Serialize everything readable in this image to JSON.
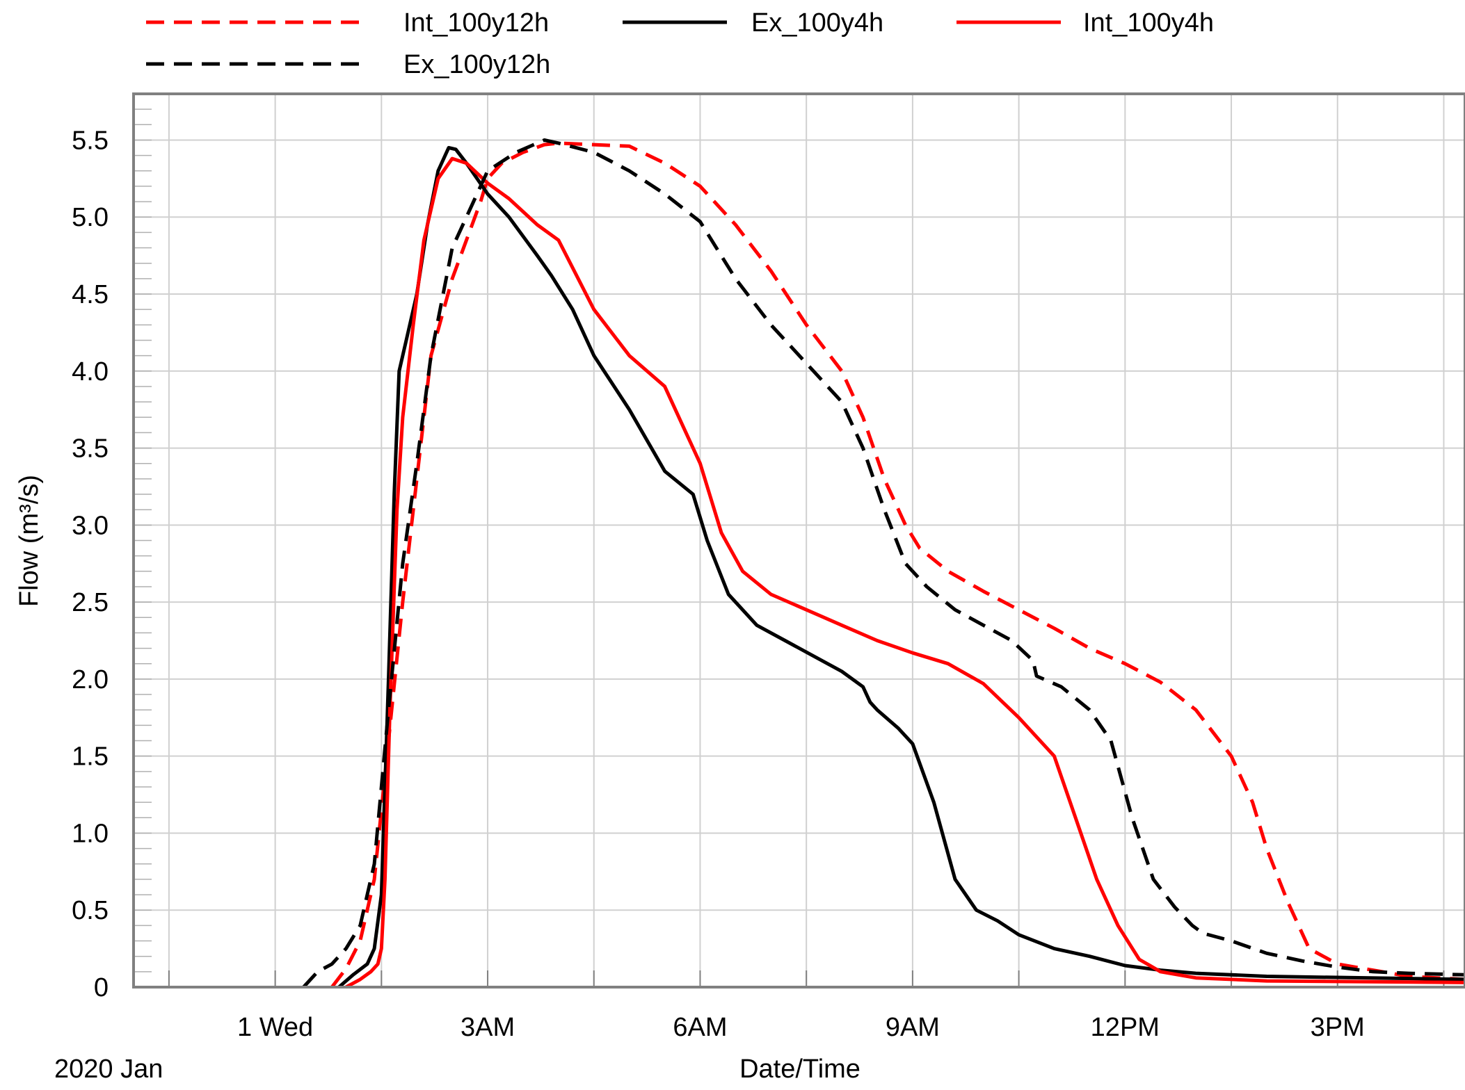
{
  "chart_data": {
    "type": "line",
    "title": "",
    "xlabel": "Date/Time",
    "ylabel": "Flow (m³/s)",
    "date_label": "2020 Jan",
    "x_unit": "hours after 2020-01-01 00:00",
    "xlim": [
      -2,
      16.8
    ],
    "ylim": [
      0,
      5.8
    ],
    "x_ticks": [
      {
        "x": 0,
        "label": "1 Wed"
      },
      {
        "x": 3,
        "label": "3AM"
      },
      {
        "x": 6,
        "label": "6AM"
      },
      {
        "x": 9,
        "label": "9AM"
      },
      {
        "x": 12,
        "label": "12PM"
      },
      {
        "x": 15,
        "label": "3PM"
      }
    ],
    "y_ticks": [
      {
        "y": 0,
        "label": "0"
      },
      {
        "y": 0.5,
        "label": "0.5"
      },
      {
        "y": 1.0,
        "label": "1.0"
      },
      {
        "y": 1.5,
        "label": "1.5"
      },
      {
        "y": 2.0,
        "label": "2.0"
      },
      {
        "y": 2.5,
        "label": "2.5"
      },
      {
        "y": 3.0,
        "label": "3.0"
      },
      {
        "y": 3.5,
        "label": "3.5"
      },
      {
        "y": 4.0,
        "label": "4.0"
      },
      {
        "y": 4.5,
        "label": "4.5"
      },
      {
        "y": 5.0,
        "label": "5.0"
      },
      {
        "y": 5.5,
        "label": "5.5"
      }
    ],
    "grid": true,
    "legend_position": "top",
    "series": [
      {
        "name": "Int_100y12h",
        "color": "#ff0000",
        "dash": "dashed",
        "points": [
          [
            0.8,
            0
          ],
          [
            1.0,
            0.12
          ],
          [
            1.2,
            0.3
          ],
          [
            1.4,
            0.7
          ],
          [
            1.6,
            1.6
          ],
          [
            1.8,
            2.5
          ],
          [
            2.0,
            3.3
          ],
          [
            2.2,
            4.1
          ],
          [
            2.5,
            4.6
          ],
          [
            2.7,
            4.85
          ],
          [
            2.9,
            5.1
          ],
          [
            3.0,
            5.25
          ],
          [
            3.2,
            5.35
          ],
          [
            3.5,
            5.42
          ],
          [
            3.8,
            5.47
          ],
          [
            4.0,
            5.48
          ],
          [
            4.5,
            5.47
          ],
          [
            5.0,
            5.46
          ],
          [
            5.5,
            5.35
          ],
          [
            6.0,
            5.2
          ],
          [
            6.5,
            4.95
          ],
          [
            7.0,
            4.65
          ],
          [
            7.5,
            4.3
          ],
          [
            8.0,
            4.0
          ],
          [
            8.3,
            3.7
          ],
          [
            8.6,
            3.3
          ],
          [
            8.9,
            3.0
          ],
          [
            9.1,
            2.85
          ],
          [
            9.5,
            2.7
          ],
          [
            10,
            2.57
          ],
          [
            10.5,
            2.45
          ],
          [
            11.0,
            2.33
          ],
          [
            11.5,
            2.2
          ],
          [
            12.0,
            2.1
          ],
          [
            12.5,
            1.98
          ],
          [
            13.0,
            1.8
          ],
          [
            13.5,
            1.5
          ],
          [
            13.8,
            1.2
          ],
          [
            14.0,
            0.9
          ],
          [
            14.3,
            0.55
          ],
          [
            14.6,
            0.25
          ],
          [
            15.0,
            0.15
          ],
          [
            15.5,
            0.11
          ],
          [
            16.0,
            0.07
          ],
          [
            16.8,
            0.05
          ]
        ]
      },
      {
        "name": "Ex_100y4h",
        "color": "#000000",
        "dash": "solid",
        "points": [
          [
            0.9,
            0
          ],
          [
            1.1,
            0.08
          ],
          [
            1.3,
            0.15
          ],
          [
            1.4,
            0.25
          ],
          [
            1.5,
            0.6
          ],
          [
            1.6,
            2.0
          ],
          [
            1.68,
            3.2
          ],
          [
            1.75,
            4.0
          ],
          [
            1.85,
            4.2
          ],
          [
            2.0,
            4.5
          ],
          [
            2.15,
            4.95
          ],
          [
            2.3,
            5.3
          ],
          [
            2.45,
            5.45
          ],
          [
            2.55,
            5.44
          ],
          [
            2.7,
            5.35
          ],
          [
            3.0,
            5.15
          ],
          [
            3.3,
            5.0
          ],
          [
            3.7,
            4.75
          ],
          [
            3.9,
            4.62
          ],
          [
            4.2,
            4.4
          ],
          [
            4.5,
            4.1
          ],
          [
            5.0,
            3.75
          ],
          [
            5.5,
            3.35
          ],
          [
            5.9,
            3.2
          ],
          [
            6.1,
            2.9
          ],
          [
            6.4,
            2.55
          ],
          [
            6.8,
            2.35
          ],
          [
            7.2,
            2.25
          ],
          [
            7.6,
            2.15
          ],
          [
            8.0,
            2.05
          ],
          [
            8.3,
            1.95
          ],
          [
            8.4,
            1.85
          ],
          [
            8.5,
            1.8
          ],
          [
            8.8,
            1.68
          ],
          [
            9.0,
            1.58
          ],
          [
            9.3,
            1.2
          ],
          [
            9.6,
            0.7
          ],
          [
            9.9,
            0.5
          ],
          [
            10.2,
            0.43
          ],
          [
            10.5,
            0.34
          ],
          [
            11.0,
            0.25
          ],
          [
            11.5,
            0.2
          ],
          [
            12.0,
            0.14
          ],
          [
            12.5,
            0.11
          ],
          [
            13.0,
            0.09
          ],
          [
            14.0,
            0.07
          ],
          [
            16.8,
            0.05
          ]
        ]
      },
      {
        "name": "Int_100y4h",
        "color": "#ff0000",
        "dash": "solid",
        "points": [
          [
            1.0,
            0
          ],
          [
            1.2,
            0.05
          ],
          [
            1.35,
            0.1
          ],
          [
            1.45,
            0.15
          ],
          [
            1.5,
            0.25
          ],
          [
            1.55,
            0.7
          ],
          [
            1.62,
            1.8
          ],
          [
            1.72,
            3.1
          ],
          [
            1.8,
            3.7
          ],
          [
            1.95,
            4.3
          ],
          [
            2.1,
            4.85
          ],
          [
            2.3,
            5.25
          ],
          [
            2.5,
            5.38
          ],
          [
            2.7,
            5.35
          ],
          [
            3.0,
            5.22
          ],
          [
            3.3,
            5.12
          ],
          [
            3.7,
            4.95
          ],
          [
            4.0,
            4.85
          ],
          [
            4.5,
            4.4
          ],
          [
            5.0,
            4.1
          ],
          [
            5.5,
            3.9
          ],
          [
            5.8,
            3.6
          ],
          [
            6.0,
            3.4
          ],
          [
            6.3,
            2.95
          ],
          [
            6.6,
            2.7
          ],
          [
            7.0,
            2.55
          ],
          [
            7.5,
            2.45
          ],
          [
            8.0,
            2.35
          ],
          [
            8.5,
            2.25
          ],
          [
            9.0,
            2.17
          ],
          [
            9.5,
            2.1
          ],
          [
            10.0,
            1.97
          ],
          [
            10.5,
            1.75
          ],
          [
            11.0,
            1.5
          ],
          [
            11.3,
            1.1
          ],
          [
            11.6,
            0.7
          ],
          [
            11.9,
            0.4
          ],
          [
            12.2,
            0.18
          ],
          [
            12.5,
            0.1
          ],
          [
            13.0,
            0.06
          ],
          [
            14.0,
            0.04
          ],
          [
            16.8,
            0.03
          ]
        ]
      },
      {
        "name": "Ex_100y12h",
        "color": "#000000",
        "dash": "dashed",
        "points": [
          [
            0.4,
            0
          ],
          [
            0.6,
            0.1
          ],
          [
            0.8,
            0.15
          ],
          [
            1.0,
            0.25
          ],
          [
            1.2,
            0.4
          ],
          [
            1.4,
            0.8
          ],
          [
            1.6,
            1.8
          ],
          [
            1.8,
            2.75
          ],
          [
            2.0,
            3.4
          ],
          [
            2.2,
            4.1
          ],
          [
            2.5,
            4.8
          ],
          [
            2.8,
            5.1
          ],
          [
            3.0,
            5.3
          ],
          [
            3.4,
            5.42
          ],
          [
            3.8,
            5.5
          ],
          [
            4.0,
            5.48
          ],
          [
            4.5,
            5.42
          ],
          [
            5.0,
            5.3
          ],
          [
            5.5,
            5.15
          ],
          [
            6.0,
            4.97
          ],
          [
            6.5,
            4.6
          ],
          [
            7.0,
            4.3
          ],
          [
            7.5,
            4.05
          ],
          [
            8.0,
            3.8
          ],
          [
            8.3,
            3.5
          ],
          [
            8.6,
            3.1
          ],
          [
            8.9,
            2.75
          ],
          [
            9.2,
            2.6
          ],
          [
            9.6,
            2.45
          ],
          [
            10,
            2.35
          ],
          [
            10.4,
            2.25
          ],
          [
            10.7,
            2.12
          ],
          [
            10.75,
            2.02
          ],
          [
            11.1,
            1.95
          ],
          [
            11.5,
            1.8
          ],
          [
            11.8,
            1.6
          ],
          [
            12.1,
            1.1
          ],
          [
            12.4,
            0.7
          ],
          [
            12.7,
            0.52
          ],
          [
            12.95,
            0.4
          ],
          [
            13.1,
            0.35
          ],
          [
            13.5,
            0.3
          ],
          [
            14.0,
            0.22
          ],
          [
            14.5,
            0.17
          ],
          [
            15.0,
            0.13
          ],
          [
            15.5,
            0.1
          ],
          [
            16.0,
            0.09
          ],
          [
            16.8,
            0.08
          ]
        ]
      }
    ]
  }
}
